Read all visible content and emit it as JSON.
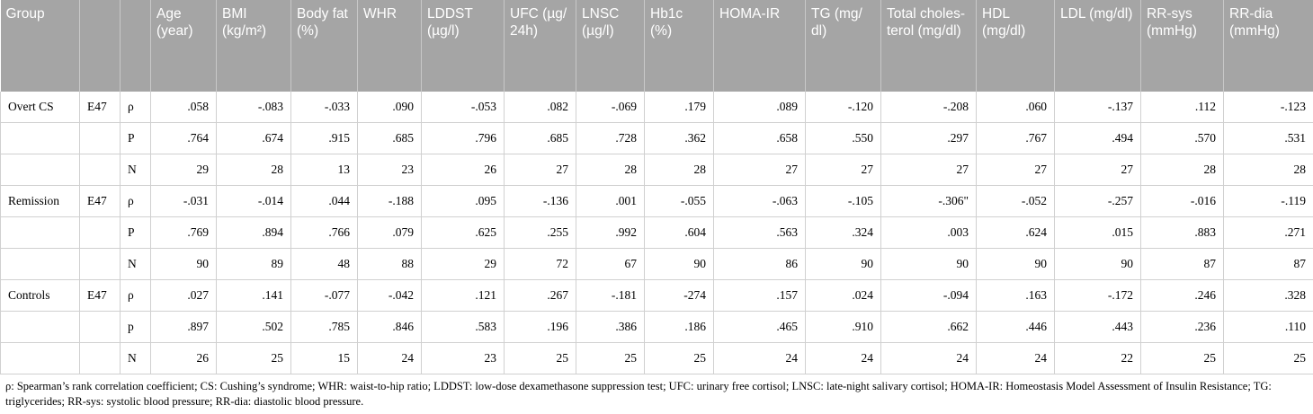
{
  "table": {
    "header": [
      "Group",
      null,
      null,
      "Age (year)",
      "BMI (kg/m²)",
      "Body fat (%)",
      "WHR",
      "LDDST (µg/l)",
      "UFC (µg/ 24h)",
      "LNSC (µg/l)",
      "Hb1c (%)",
      "HOMA-IR",
      "TG (mg/ dl)",
      "Total choles­terol (mg/dl)",
      "HDL (mg/dl)",
      "LDL (mg/dl)",
      "RR-sys (mmHg)",
      "RR-dia (mmHg)"
    ],
    "rows": [
      [
        "Overt CS",
        "E47",
        "ρ",
        ".058",
        "-.083",
        "-.033",
        ".090",
        "-.053",
        ".082",
        "-.069",
        ".179",
        ".089",
        "-.120",
        "-.208",
        ".060",
        "-.137",
        ".112",
        "-.123"
      ],
      [
        null,
        null,
        "P",
        ".764",
        ".674",
        ".915",
        ".685",
        ".796",
        ".685",
        ".728",
        ".362",
        ".658",
        ".550",
        ".297",
        ".767",
        ".494",
        ".570",
        ".531"
      ],
      [
        null,
        null,
        "N",
        "29",
        "28",
        "13",
        "23",
        "26",
        "27",
        "28",
        "28",
        "27",
        "27",
        "27",
        "27",
        "27",
        "28",
        "28"
      ],
      [
        "Remission",
        "E47",
        "ρ",
        "-.031",
        "-.014",
        ".044",
        "-.188",
        ".095",
        "-.136",
        ".001",
        "-.055",
        "-.063",
        "-.105",
        "-.306\"",
        "-.052",
        "-.257",
        "-.016",
        "-.119"
      ],
      [
        null,
        null,
        "P",
        ".769",
        ".894",
        ".766",
        ".079",
        ".625",
        ".255",
        ".992",
        ".604",
        ".563",
        ".324",
        ".003",
        ".624",
        ".015",
        ".883",
        ".271"
      ],
      [
        null,
        null,
        "N",
        "90",
        "89",
        "48",
        "88",
        "29",
        "72",
        "67",
        "90",
        "86",
        "90",
        "90",
        "90",
        "90",
        "87",
        "87"
      ],
      [
        "Controls",
        "E47",
        "ρ",
        ".027",
        ".141",
        "-.077",
        "-.042",
        ".121",
        ".267",
        "-.181",
        "-274",
        ".157",
        ".024",
        "-.094",
        ".163",
        "-.172",
        ".246",
        ".328"
      ],
      [
        null,
        null,
        "p",
        ".897",
        ".502",
        ".785",
        ".846",
        ".583",
        ".196",
        ".386",
        ".186",
        ".465",
        ".910",
        ".662",
        ".446",
        ".443",
        ".236",
        ".110"
      ],
      [
        null,
        null,
        "N",
        "26",
        "25",
        "15",
        "24",
        "23",
        "25",
        "25",
        "25",
        "24",
        "24",
        "24",
        "24",
        "22",
        "25",
        "25"
      ]
    ]
  },
  "footnote": "ρ: Spearman’s rank correlation coefficient; CS: Cushing’s syndrome; WHR: waist-to-hip ratio; LDDST: low-dose dexamethasone suppression test; UFC: urinary free cortisol; LNSC: late-night salivary cortisol; HOMA-IR: Homeostasis Model Assessment of Insulin Resistance; TG: triglycerides; RR-sys: systolic blood pressure; RR-dia: diastolic blood pressure."
}
